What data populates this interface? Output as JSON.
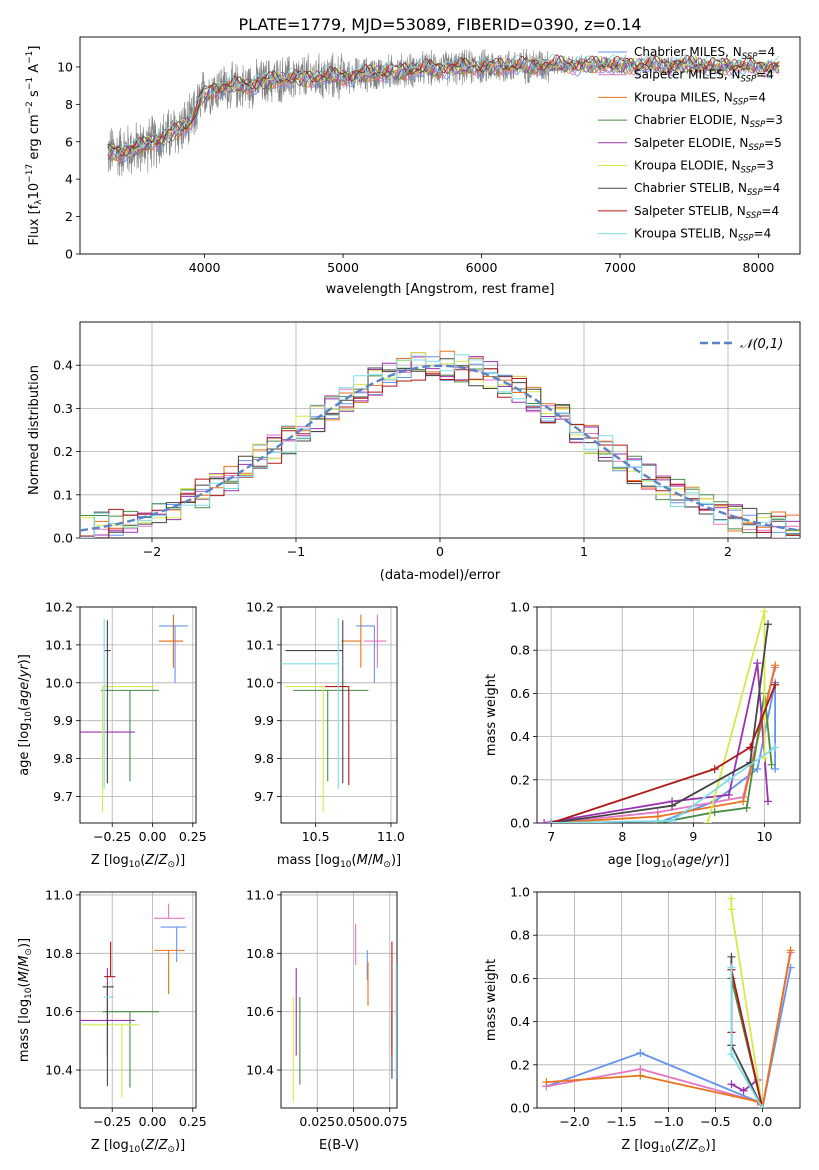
{
  "figure": {
    "title": "PLATE=1779, MJD=53089, FIBERID=0390, z=0.14"
  },
  "models": [
    {
      "name": "Chabrier MILES",
      "nssp": "4",
      "color": "#6495ed"
    },
    {
      "name": "Salpeter MILES",
      "nssp": "4",
      "color": "#e377c2"
    },
    {
      "name": "Kroupa MILES",
      "nssp": "4",
      "color": "#e8731a"
    },
    {
      "name": "Chabrier ELODIE",
      "nssp": "3",
      "color": "#4a8c4a"
    },
    {
      "name": "Salpeter ELODIE",
      "nssp": "5",
      "color": "#9b30b0"
    },
    {
      "name": "Kroupa ELODIE",
      "nssp": "3",
      "color": "#d8e84a"
    },
    {
      "name": "Chabrier STELIB",
      "nssp": "4",
      "color": "#454545"
    },
    {
      "name": "Salpeter STELIB",
      "nssp": "4",
      "color": "#b01818"
    },
    {
      "name": "Kroupa STELIB",
      "nssp": "4",
      "color": "#7fdce8"
    }
  ],
  "chart_data": [
    {
      "id": "spectrum",
      "type": "line",
      "xlabel": "wavelength [Angstrom, rest frame]",
      "ylabel": "Flux [f_λ 10^-17 erg cm^-2 s^-1 A^-1]",
      "xlim": [
        3100,
        8300
      ],
      "ylim": [
        0,
        11.6
      ],
      "xticks": [
        4000,
        5000,
        6000,
        7000,
        8000
      ],
      "yticks": [
        0,
        2,
        4,
        6,
        8,
        10
      ],
      "data_color": "#808080",
      "continuum": {
        "x": [
          3300,
          3500,
          3700,
          3900,
          4000,
          4100,
          4300,
          4500,
          4700,
          5000,
          5300,
          5600,
          6000,
          6500,
          7000,
          7500,
          8000,
          8150
        ],
        "y": [
          5.4,
          5.6,
          6.2,
          7.0,
          8.6,
          8.9,
          9.0,
          9.3,
          9.4,
          9.5,
          9.7,
          9.9,
          10.0,
          10.1,
          10.1,
          10.1,
          10.0,
          10.0
        ]
      },
      "data_range": [
        3300,
        8150
      ],
      "legend": "top-right",
      "grid": false
    },
    {
      "id": "residuals",
      "type": "line",
      "xlabel": "(data-model)/error",
      "ylabel": "Normed distribution",
      "xlim": [
        -2.5,
        2.5
      ],
      "ylim": [
        0,
        0.5
      ],
      "xticks": [
        -2,
        -1,
        0,
        1,
        2
      ],
      "yticks": [
        0.0,
        0.1,
        0.2,
        0.3,
        0.4
      ],
      "reference": {
        "name": "𝒩(0,1)",
        "mu": 0,
        "sigma": 1,
        "color": "#5b84c4"
      },
      "bin_width": 0.1,
      "legend": "top-right",
      "grid": true
    },
    {
      "id": "age_vs_Z",
      "type": "scatter",
      "xlabel": "Z [log10(Z/Z☉)]",
      "ylabel": "age [log10(age/yr)]",
      "xlim": [
        -0.45,
        0.27
      ],
      "ylim": [
        9.63,
        10.2
      ],
      "xticks": [
        -0.25,
        0.0,
        0.25
      ],
      "xticklabels": [
        "−0.25",
        "0.00",
        "0.25"
      ],
      "yticks": [
        9.7,
        9.8,
        9.9,
        10.0,
        10.1,
        10.2
      ],
      "points": [
        {
          "model": 0,
          "x": 0.14,
          "xerr": [
            0.1,
            0.08
          ],
          "y": 10.15,
          "yerr": [
            0.15,
            0.0
          ]
        },
        {
          "model": 1,
          "x": 0.13,
          "xerr": [
            0.09,
            0.06
          ],
          "y": 10.11,
          "yerr": [
            0.07,
            0.07
          ]
        },
        {
          "model": 2,
          "x": 0.13,
          "xerr": [
            0.09,
            0.06
          ],
          "y": 10.11,
          "yerr": [
            0.07,
            0.07
          ]
        },
        {
          "model": 3,
          "x": -0.14,
          "xerr": [
            0.18,
            0.18
          ],
          "y": 9.98,
          "yerr": [
            0.24,
            0.0
          ]
        },
        {
          "model": 4,
          "x": -0.28,
          "xerr": [
            0.17,
            0.17
          ],
          "y": 9.87,
          "yerr": [
            0.0,
            0.0
          ]
        },
        {
          "model": 5,
          "x": -0.31,
          "xerr": [
            0.0,
            0.32
          ],
          "y": 9.99,
          "yerr": [
            0.33,
            0.0
          ]
        },
        {
          "model": 6,
          "x": -0.28,
          "xerr": [
            0.02,
            0.02
          ],
          "y": 10.085,
          "yerr": [
            0.35,
            0.08
          ]
        },
        {
          "model": 7,
          "x": -0.27,
          "xerr": [
            0.0,
            0.0
          ],
          "y": 9.99,
          "yerr": [
            0.0,
            0.0
          ]
        },
        {
          "model": 8,
          "x": -0.3,
          "xerr": [
            0.0,
            0.0
          ],
          "y": 10.05,
          "yerr": [
            0.33,
            0.12
          ]
        }
      ],
      "grid": true
    },
    {
      "id": "age_vs_mass",
      "type": "scatter",
      "xlabel": "mass [log10(M/M☉)]",
      "ylabel": "",
      "xlim": [
        10.27,
        11.04
      ],
      "ylim": [
        9.63,
        10.2
      ],
      "xticks": [
        10.5,
        11.0
      ],
      "xticklabels": [
        "10.5",
        "11.0"
      ],
      "yticks": [
        9.7,
        9.8,
        9.9,
        10.0,
        10.1,
        10.2
      ],
      "points": [
        {
          "model": 0,
          "x": 10.89,
          "xerr": [
            0.12,
            0.0
          ],
          "y": 10.15,
          "yerr": [
            0.15,
            0.0
          ]
        },
        {
          "model": 1,
          "x": 10.91,
          "xerr": [
            0.09,
            0.06
          ],
          "y": 10.11,
          "yerr": [
            0.07,
            0.07
          ]
        },
        {
          "model": 2,
          "x": 10.8,
          "xerr": [
            0.13,
            0.0
          ],
          "y": 10.11,
          "yerr": [
            0.07,
            0.07
          ]
        },
        {
          "model": 3,
          "x": 10.58,
          "xerr": [
            0.23,
            0.27
          ],
          "y": 9.98,
          "yerr": [
            0.24,
            0.0
          ]
        },
        {
          "model": 4,
          "x": 10.56,
          "xerr": [
            0.0,
            0.0
          ],
          "y": 9.87,
          "yerr": [
            0.0,
            0.0
          ]
        },
        {
          "model": 5,
          "x": 10.55,
          "xerr": [
            0.25,
            0.0
          ],
          "y": 9.99,
          "yerr": [
            0.33,
            0.0
          ]
        },
        {
          "model": 6,
          "x": 10.68,
          "xerr": [
            0.38,
            0.0
          ],
          "y": 10.085,
          "yerr": [
            0.35,
            0.08
          ]
        },
        {
          "model": 7,
          "x": 10.72,
          "xerr": [
            0.16,
            0.0
          ],
          "y": 9.99,
          "yerr": [
            0.26,
            0.0
          ]
        },
        {
          "model": 8,
          "x": 10.65,
          "xerr": [
            0.38,
            0.0
          ],
          "y": 10.05,
          "yerr": [
            0.33,
            0.12
          ]
        }
      ],
      "grid": true
    },
    {
      "id": "massweight_vs_age",
      "type": "line",
      "xlabel": "age [log10(age/yr)]",
      "ylabel": "mass weight",
      "xlim": [
        6.8,
        10.5
      ],
      "ylim": [
        0,
        1.0
      ],
      "xticks": [
        7,
        8,
        9,
        10
      ],
      "yticks": [
        0.0,
        0.2,
        0.4,
        0.6,
        0.8,
        1.0
      ],
      "series": [
        {
          "model": 0,
          "x": [
            8.5,
            9.3,
            9.9,
            10.15,
            10.15
          ],
          "y": [
            0.0,
            0.1,
            0.25,
            0.65,
            0.25
          ]
        },
        {
          "model": 1,
          "x": [
            7.0,
            8.5,
            9.7,
            10.15
          ],
          "y": [
            0.0,
            0.05,
            0.12,
            0.72
          ]
        },
        {
          "model": 2,
          "x": [
            7.0,
            8.5,
            9.7,
            10.15
          ],
          "y": [
            0.0,
            0.03,
            0.1,
            0.73
          ]
        },
        {
          "model": 3,
          "x": [
            8.5,
            9.3,
            9.75,
            10.0,
            10.1
          ],
          "y": [
            0.0,
            0.05,
            0.07,
            0.6,
            0.27
          ]
        },
        {
          "model": 4,
          "x": [
            6.9,
            8.7,
            9.5,
            9.9,
            10.05
          ],
          "y": [
            0.0,
            0.1,
            0.13,
            0.74,
            0.1
          ]
        },
        {
          "model": 5,
          "x": [
            9.2,
            10.0,
            10.0
          ],
          "y": [
            0.0,
            0.98,
            0.3
          ]
        },
        {
          "model": 6,
          "x": [
            7.0,
            8.7,
            9.8,
            10.05
          ],
          "y": [
            0.0,
            0.08,
            0.28,
            0.92
          ]
        },
        {
          "model": 7,
          "x": [
            7.0,
            9.3,
            9.8,
            10.15
          ],
          "y": [
            0.0,
            0.25,
            0.35,
            0.64
          ]
        },
        {
          "model": 8,
          "x": [
            7.0,
            8.7,
            9.5,
            10.15
          ],
          "y": [
            0.0,
            0.01,
            0.2,
            0.35
          ]
        }
      ],
      "grid": true
    },
    {
      "id": "mass_vs_Z",
      "type": "scatter",
      "xlabel": "Z [log10(Z/Z☉)]",
      "ylabel": "mass [log10(M/M☉)]",
      "xlim": [
        -0.45,
        0.27
      ],
      "ylim": [
        10.27,
        11.01
      ],
      "xticks": [
        -0.25,
        0.0,
        0.25
      ],
      "xticklabels": [
        "−0.25",
        "0.00",
        "0.25"
      ],
      "yticks": [
        10.4,
        10.6,
        10.8,
        11.0
      ],
      "points": [
        {
          "model": 0,
          "x": 0.15,
          "xerr": [
            0.1,
            0.06
          ],
          "y": 10.89,
          "yerr": [
            0.12,
            0.0
          ]
        },
        {
          "model": 1,
          "x": 0.1,
          "xerr": [
            0.09,
            0.1
          ],
          "y": 10.92,
          "yerr": [
            0.0,
            0.05
          ]
        },
        {
          "model": 2,
          "x": 0.1,
          "xerr": [
            0.09,
            0.1
          ],
          "y": 10.81,
          "yerr": [
            0.15,
            0.0
          ]
        },
        {
          "model": 3,
          "x": -0.14,
          "xerr": [
            0.17,
            0.18
          ],
          "y": 10.6,
          "yerr": [
            0.26,
            0.0
          ]
        },
        {
          "model": 4,
          "x": -0.28,
          "xerr": [
            0.17,
            0.17
          ],
          "y": 10.57,
          "yerr": [
            0.12,
            0.18
          ]
        },
        {
          "model": 5,
          "x": -0.19,
          "xerr": [
            0.25,
            0.11
          ],
          "y": 10.555,
          "yerr": [
            0.25,
            0.0
          ]
        },
        {
          "model": 6,
          "x": -0.28,
          "xerr": [
            0.03,
            0.04
          ],
          "y": 10.685,
          "yerr": [
            0.34,
            0.0
          ]
        },
        {
          "model": 7,
          "x": -0.26,
          "xerr": [
            0.04,
            0.03
          ],
          "y": 10.72,
          "yerr": [
            0.0,
            0.12
          ]
        },
        {
          "model": 8,
          "x": -0.27,
          "xerr": [
            0.03,
            0.03
          ],
          "y": 10.65,
          "yerr": [
            0.0,
            0.0
          ]
        }
      ],
      "grid": true
    },
    {
      "id": "mass_vs_ebv",
      "type": "scatter",
      "xlabel": "E(B-V)",
      "ylabel": "",
      "xlim": [
        0.0,
        0.08
      ],
      "ylim": [
        10.27,
        11.01
      ],
      "xticks": [
        0.025,
        0.05,
        0.075
      ],
      "xticklabels": [
        "0.025",
        "0.050",
        "0.075"
      ],
      "yticks": [
        10.4,
        10.6,
        10.8,
        11.0
      ],
      "points": [
        {
          "model": 0,
          "x": 0.0595,
          "xerr": [
            0.0,
            0.0
          ],
          "y": 10.81,
          "yerr": [
            0.1,
            0.0
          ]
        },
        {
          "model": 1,
          "x": 0.0515,
          "xerr": [
            0.0,
            0.0
          ],
          "y": 10.9,
          "yerr": [
            0.14,
            0.0
          ]
        },
        {
          "model": 2,
          "x": 0.06,
          "xerr": [
            0.0,
            0.0
          ],
          "y": 10.77,
          "yerr": [
            0.15,
            0.0
          ]
        },
        {
          "model": 3,
          "x": 0.013,
          "xerr": [
            0.0,
            0.0
          ],
          "y": 10.49,
          "yerr": [
            0.14,
            0.16
          ]
        },
        {
          "model": 4,
          "x": 0.0105,
          "xerr": [
            0.0,
            0.0
          ],
          "y": 10.6,
          "yerr": [
            0.15,
            0.15
          ]
        },
        {
          "model": 5,
          "x": 0.0085,
          "xerr": [
            0.0,
            0.0
          ],
          "y": 10.5,
          "yerr": [
            0.21,
            0.15
          ]
        },
        {
          "model": 6,
          "x": 0.0765,
          "xerr": [
            0.0,
            0.0
          ],
          "y": 10.6,
          "yerr": [
            0.23,
            0.0
          ]
        },
        {
          "model": 7,
          "x": 0.0765,
          "xerr": [
            0.0,
            0.0
          ],
          "y": 10.62,
          "yerr": [
            0.17,
            0.22
          ]
        },
        {
          "model": 8,
          "x": 0.0795,
          "xerr": [
            0.0,
            0.0
          ],
          "y": 10.55,
          "yerr": [
            0.18,
            0.21
          ]
        }
      ],
      "grid": true
    },
    {
      "id": "massweight_vs_Z",
      "type": "line",
      "xlabel": "Z [log10(Z/Z☉)]",
      "ylabel": "mass weight",
      "xlim": [
        -2.4,
        0.4
      ],
      "ylim": [
        0,
        1.0
      ],
      "xticks": [
        -2.0,
        -1.5,
        -1.0,
        -0.5,
        0.0
      ],
      "xticklabels": [
        "−2.0",
        "−1.5",
        "−1.0",
        "−0.5",
        "0.0"
      ],
      "yticks": [
        0.0,
        0.2,
        0.4,
        0.6,
        0.8,
        1.0
      ],
      "series": [
        {
          "model": 0,
          "x": [
            -2.3,
            -1.3,
            -0.05,
            0.0,
            0.3
          ],
          "y": [
            0.1,
            0.255,
            0.03,
            0.0,
            0.65
          ]
        },
        {
          "model": 1,
          "x": [
            -2.3,
            -1.3,
            -0.05,
            0.0,
            0.3
          ],
          "y": [
            0.1,
            0.18,
            0.03,
            0.0,
            0.72
          ]
        },
        {
          "model": 2,
          "x": [
            -2.3,
            -1.3,
            -0.05,
            0.0,
            0.3
          ],
          "y": [
            0.12,
            0.15,
            0.03,
            0.0,
            0.73
          ]
        },
        {
          "model": 3,
          "x": [
            -0.33,
            -0.33,
            0.0
          ],
          "y": [
            0.29,
            0.6,
            0.0
          ]
        },
        {
          "model": 4,
          "x": [
            -0.33,
            -0.2,
            -0.05,
            0.0
          ],
          "y": [
            0.11,
            0.08,
            0.13,
            0.0
          ]
        },
        {
          "model": 5,
          "x": [
            -0.33,
            -0.33,
            0.0
          ],
          "y": [
            0.97,
            0.92,
            0.0
          ]
        },
        {
          "model": 6,
          "x": [
            -0.33,
            -0.33,
            0.0
          ],
          "y": [
            0.7,
            0.29,
            0.0
          ]
        },
        {
          "model": 7,
          "x": [
            -0.33,
            -0.33,
            0.0
          ],
          "y": [
            0.35,
            0.64,
            0.0
          ]
        },
        {
          "model": 8,
          "x": [
            -0.33,
            -0.33,
            0.0
          ],
          "y": [
            0.65,
            0.25,
            0.0
          ]
        }
      ],
      "grid": true
    }
  ]
}
